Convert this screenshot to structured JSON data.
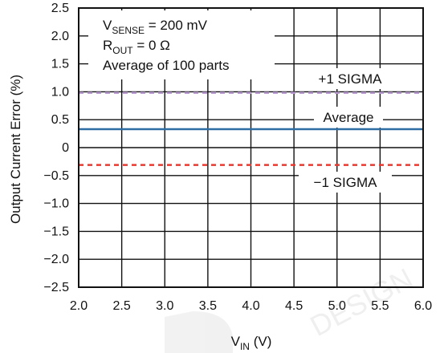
{
  "chart_data": {
    "type": "line",
    "title": "",
    "xlabel": {
      "main": "V",
      "sub": "IN",
      "unit": " (V)"
    },
    "ylabel": "Output Current Error (%)",
    "xlim": [
      2.0,
      6.0
    ],
    "ylim": [
      -2.5,
      2.5
    ],
    "x_ticks": [
      2.0,
      2.5,
      3.0,
      3.5,
      4.0,
      4.5,
      5.0,
      5.5,
      6.0
    ],
    "x_tick_labels": [
      "2.0",
      "2.5",
      "3.0",
      "3.5",
      "4.0",
      "4.5",
      "5.0",
      "5.5",
      "6.0"
    ],
    "y_ticks": [
      2.5,
      2.0,
      1.5,
      1.0,
      0.5,
      0,
      -0.5,
      -1.0,
      -1.5,
      -2.0,
      -2.5
    ],
    "y_tick_labels": [
      "2.5",
      "2.0",
      "1.5",
      "1.0",
      "0.5",
      "0",
      "−0.5",
      "−1.0",
      "−1.5",
      "−2.0",
      "−2.5"
    ],
    "grid": true,
    "conditions": [
      {
        "main": "V",
        "sub": "SENSE",
        "rest": " = 200 mV"
      },
      {
        "main": "R",
        "sub": "OUT",
        "rest": " = 0 Ω"
      },
      {
        "main": "Average of 100 parts",
        "sub": "",
        "rest": ""
      }
    ],
    "series": [
      {
        "name": "+1 SIGMA",
        "x": [
          2.0,
          6.0
        ],
        "y": [
          0.98,
          0.98
        ],
        "color": "#b89ad0",
        "style": "dashed"
      },
      {
        "name": "Average",
        "x": [
          2.0,
          6.0
        ],
        "y": [
          0.33,
          0.33
        ],
        "color": "#2e6da4",
        "style": "solid"
      },
      {
        "name": "−1 SIGMA",
        "x": [
          2.0,
          6.0
        ],
        "y": [
          -0.31,
          -0.31
        ],
        "color": "#e83a30",
        "style": "dashed"
      }
    ]
  },
  "watermark": "DESIGN"
}
